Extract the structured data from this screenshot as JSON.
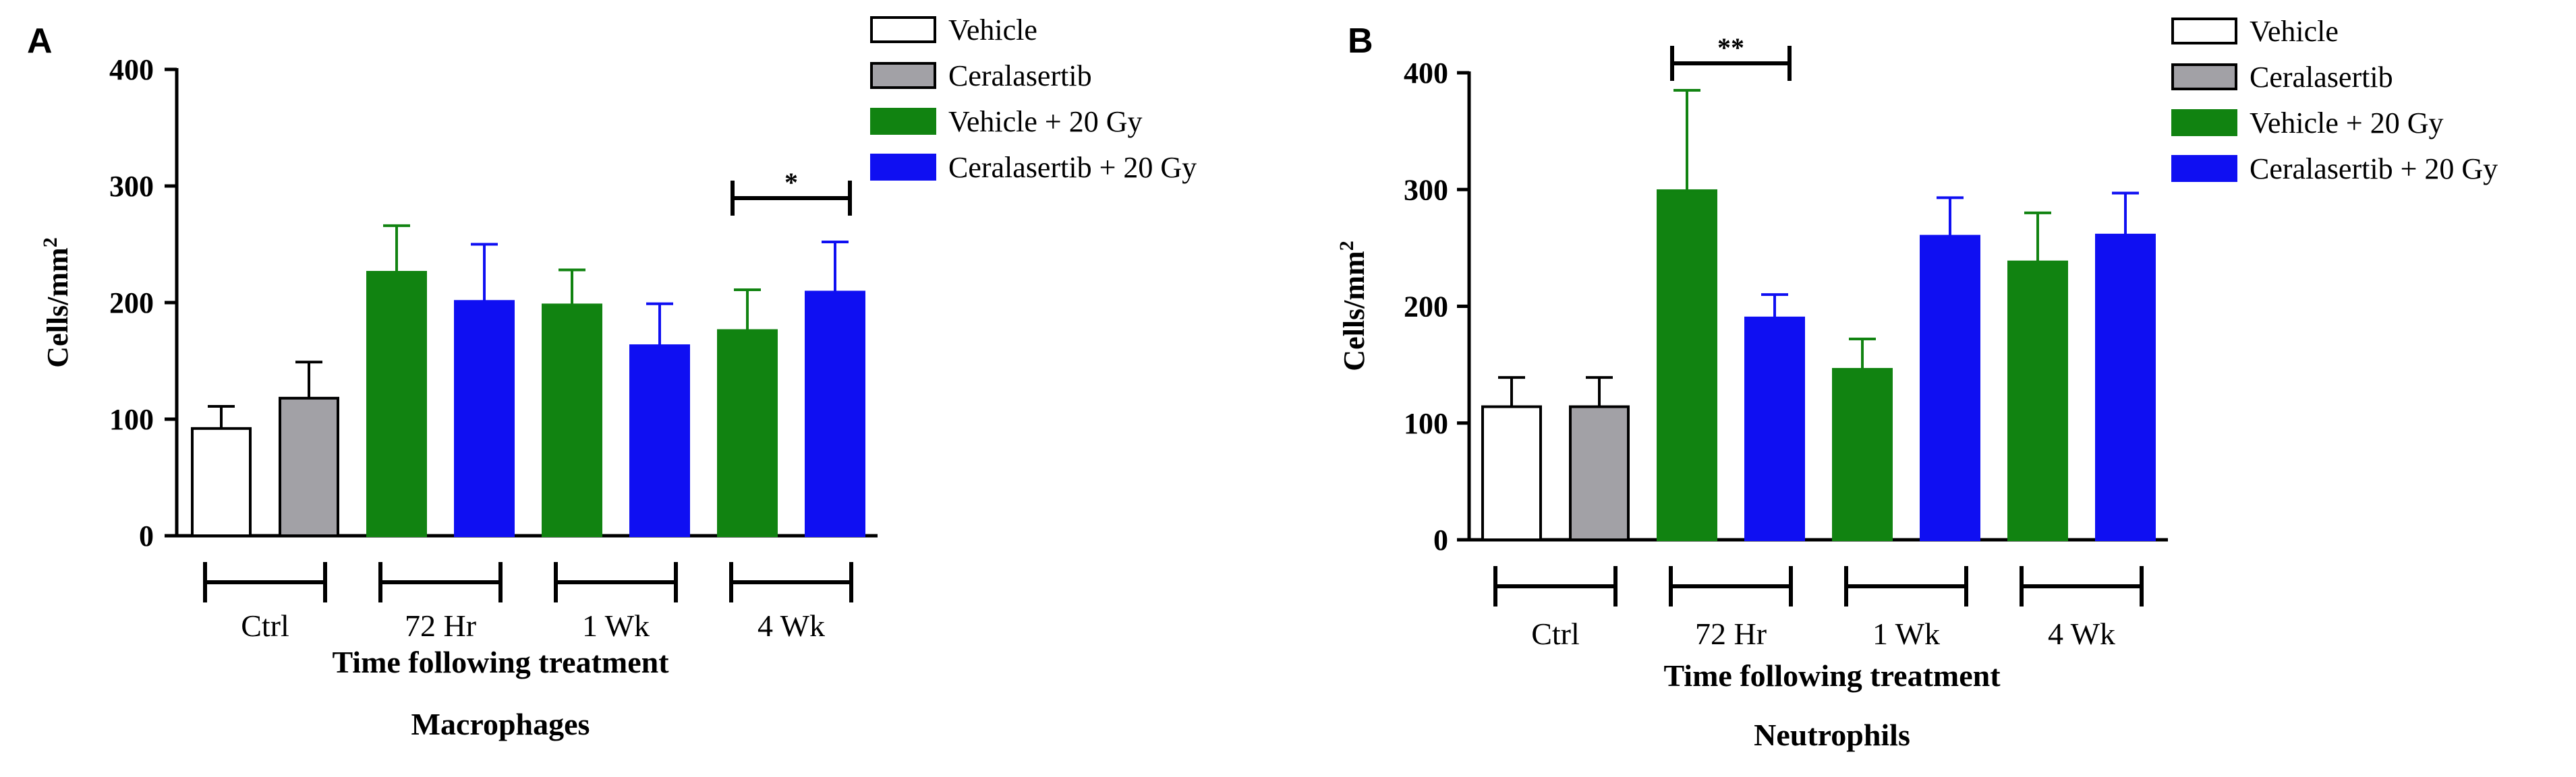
{
  "figure": {
    "legend": [
      {
        "label": "Vehicle",
        "color": "#ffffff"
      },
      {
        "label": "Ceralasertib",
        "color": "#a2a1a6"
      },
      {
        "label": "Vehicle + 20 Gy",
        "color": "#118311"
      },
      {
        "label": "Ceralasertib + 20 Gy",
        "color": "#0f0ff2"
      }
    ]
  },
  "chart_data": [
    {
      "panel_label": "A",
      "type": "bar",
      "title": "Macrophages",
      "xlabel": "Time following treatment",
      "ylabel": "Cells/mm",
      "ylabel_superscript": "2",
      "ylim": [
        0,
        400
      ],
      "yticks": [
        0,
        100,
        200,
        300,
        400
      ],
      "groups": [
        "Ctrl",
        "72 Hr",
        "1 Wk",
        "4 Wk"
      ],
      "bars": [
        {
          "group": "Ctrl",
          "series": "Vehicle",
          "value": 92,
          "error": 19
        },
        {
          "group": "Ctrl",
          "series": "Ceralasertib",
          "value": 118,
          "error": 31
        },
        {
          "group": "72 Hr",
          "series": "Vehicle + 20 Gy",
          "value": 226,
          "error": 40
        },
        {
          "group": "72 Hr",
          "series": "Ceralasertib + 20 Gy",
          "value": 201,
          "error": 49
        },
        {
          "group": "1 Wk",
          "series": "Vehicle + 20 Gy",
          "value": 198,
          "error": 30
        },
        {
          "group": "1 Wk",
          "series": "Ceralasertib + 20 Gy",
          "value": 163,
          "error": 36
        },
        {
          "group": "4 Wk",
          "series": "Vehicle + 20 Gy",
          "value": 176,
          "error": 35
        },
        {
          "group": "4 Wk",
          "series": "Ceralasertib + 20 Gy",
          "value": 209,
          "error": 43
        }
      ],
      "significance": [
        {
          "group": "4 Wk",
          "label": "*"
        }
      ]
    },
    {
      "panel_label": "B",
      "type": "bar",
      "title": "Neutrophils",
      "xlabel": "Time following treatment",
      "ylabel": "Cells/mm",
      "ylabel_superscript": "2",
      "ylim": [
        0,
        400
      ],
      "yticks": [
        0,
        100,
        200,
        300,
        400
      ],
      "groups": [
        "Ctrl",
        "72 Hr",
        "1 Wk",
        "4 Wk"
      ],
      "bars": [
        {
          "group": "Ctrl",
          "series": "Vehicle",
          "value": 114,
          "error": 25
        },
        {
          "group": "Ctrl",
          "series": "Ceralasertib",
          "value": 114,
          "error": 25
        },
        {
          "group": "72 Hr",
          "series": "Vehicle + 20 Gy",
          "value": 299,
          "error": 86
        },
        {
          "group": "72 Hr",
          "series": "Ceralasertib + 20 Gy",
          "value": 190,
          "error": 20
        },
        {
          "group": "1 Wk",
          "series": "Vehicle + 20 Gy",
          "value": 146,
          "error": 26
        },
        {
          "group": "1 Wk",
          "series": "Ceralasertib + 20 Gy",
          "value": 260,
          "error": 33
        },
        {
          "group": "4 Wk",
          "series": "Vehicle + 20 Gy",
          "value": 238,
          "error": 42
        },
        {
          "group": "4 Wk",
          "series": "Ceralasertib + 20 Gy",
          "value": 261,
          "error": 36
        }
      ],
      "significance": [
        {
          "group": "72 Hr",
          "label": "**"
        }
      ]
    }
  ]
}
